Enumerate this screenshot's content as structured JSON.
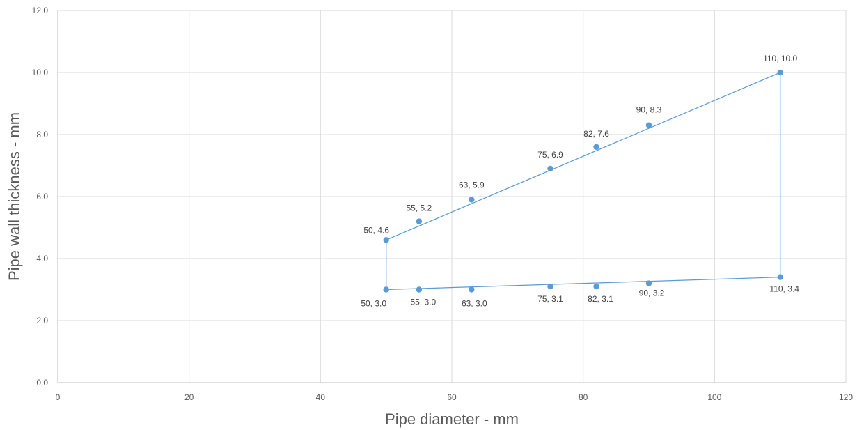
{
  "chart_data": {
    "type": "scatter",
    "xlabel": "Pipe diameter - mm",
    "ylabel": "Pipe wall thickness - mm",
    "xlim": [
      0,
      120
    ],
    "ylim": [
      0,
      12
    ],
    "x_ticks": [
      0,
      20,
      40,
      60,
      80,
      100,
      120
    ],
    "x_tick_labels": [
      "0",
      "20",
      "40",
      "60",
      "80",
      "100",
      "120"
    ],
    "y_ticks": [
      0,
      2,
      4,
      6,
      8,
      10,
      12
    ],
    "y_tick_labels": [
      "0.0",
      "2.0",
      "4.0",
      "6.0",
      "8.0",
      "10.0",
      "12.0"
    ],
    "grid": true,
    "legend": "none",
    "series": [
      {
        "color": "#5b9bd5",
        "markers": true,
        "connected": true,
        "points": [
          {
            "x": 50,
            "y": 3.0,
            "label": "50, 3.0"
          },
          {
            "x": 50,
            "y": 4.6,
            "label": "50, 4.6"
          },
          {
            "x": 55,
            "y": 5.2,
            "label": "55, 5.2"
          },
          {
            "x": 63,
            "y": 5.9,
            "label": "63, 5.9"
          },
          {
            "x": 75,
            "y": 6.9,
            "label": "75, 6.9"
          },
          {
            "x": 82,
            "y": 7.6,
            "label": "82, 7.6"
          },
          {
            "x": 90,
            "y": 8.3,
            "label": "90, 8.3"
          },
          {
            "x": 110,
            "y": 10.0,
            "label": "110, 10.0"
          },
          {
            "x": 110,
            "y": 3.4,
            "label": "110, 3.4"
          },
          {
            "x": 90,
            "y": 3.2,
            "label": "90, 3.2"
          },
          {
            "x": 82,
            "y": 3.1,
            "label": "82, 3.1"
          },
          {
            "x": 75,
            "y": 3.1,
            "label": "75, 3.1"
          },
          {
            "x": 63,
            "y": 3.0,
            "label": "63, 3.0"
          },
          {
            "x": 55,
            "y": 3.0,
            "label": "55, 3.0"
          }
        ],
        "outline_path": [
          {
            "x": 50,
            "y": 3.0
          },
          {
            "x": 50,
            "y": 4.6
          },
          {
            "x": 110,
            "y": 10.0
          },
          {
            "x": 110,
            "y": 3.4
          },
          {
            "x": 50,
            "y": 3.0
          }
        ]
      }
    ]
  }
}
